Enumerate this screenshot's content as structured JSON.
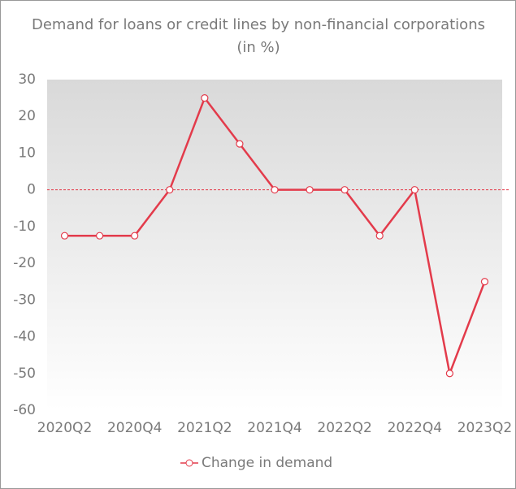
{
  "chart_data": {
    "type": "line",
    "title": "Demand for loans or credit lines by non-financial corporations",
    "subtitle": "(in %)",
    "categories": [
      "2020Q2",
      null,
      "2020Q4",
      null,
      "2021Q2",
      null,
      "2021Q4",
      null,
      "2022Q2",
      null,
      "2022Q4",
      null,
      "2023Q2"
    ],
    "series": [
      {
        "name": "Change in demand",
        "color": "#e33b4b",
        "values": [
          -12.5,
          -12.5,
          -12.5,
          0,
          25,
          12.5,
          0,
          0,
          0,
          -12.5,
          0,
          -50,
          -25
        ]
      }
    ],
    "ylim": [
      -60,
      30
    ],
    "yticks": [
      -60,
      -50,
      -40,
      -30,
      -20,
      -10,
      0,
      10,
      20,
      30
    ],
    "reference_line": 0,
    "grid": false,
    "legend": "bottom"
  }
}
